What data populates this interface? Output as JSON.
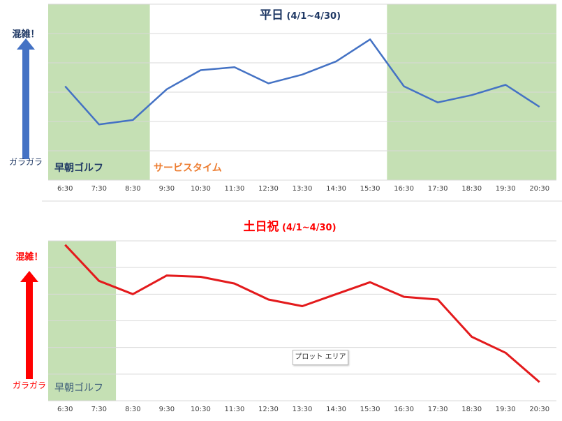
{
  "chart_data": [
    {
      "type": "line",
      "title_main": "平日",
      "title_range": "(4/1~4/30)",
      "title_color": "#1f3864",
      "line_color": "#4472c4",
      "arrow_color": "#4472c4",
      "label_top": "混雑！",
      "label_bottom": "ガラガラ",
      "categories": [
        "6:30",
        "7:30",
        "8:30",
        "9:30",
        "10:30",
        "11:30",
        "12:30",
        "13:30",
        "14:30",
        "15:30",
        "16:30",
        "17:30",
        "18:30",
        "19:30",
        "20:30"
      ],
      "values": [
        3.2,
        1.9,
        2.05,
        3.1,
        3.75,
        3.85,
        3.3,
        3.6,
        4.05,
        4.8,
        3.2,
        2.65,
        2.9,
        3.25,
        2.5
      ],
      "ylim": [
        0,
        6
      ],
      "grid": true,
      "shaded_regions": [
        {
          "from": "6:30",
          "to": "8:30",
          "color": "#c5e0b4",
          "label": "早朝ゴルフ",
          "label_color": "#1f3864"
        },
        {
          "from": "16:30",
          "to": "20:30",
          "color": "#c5e0b4",
          "label": "",
          "label_color": ""
        }
      ],
      "band_label": "サービスタイム",
      "band_label_color": "#ed7d31"
    },
    {
      "type": "line",
      "title_main": "土日祝",
      "title_range": "(4/1~4/30)",
      "title_color": "#ff0000",
      "line_color": "#e31a1c",
      "arrow_color": "#ff0000",
      "label_top": "混雑！",
      "label_bottom": "ガラガラ",
      "categories": [
        "6:30",
        "7:30",
        "8:30",
        "9:30",
        "10:30",
        "11:30",
        "12:30",
        "13:30",
        "14:30",
        "15:30",
        "16:30",
        "17:30",
        "18:30",
        "19:30",
        "20:30"
      ],
      "values": [
        5.85,
        4.5,
        4.0,
        4.7,
        4.65,
        4.4,
        3.8,
        3.55,
        4.0,
        4.45,
        3.9,
        3.8,
        2.4,
        1.8,
        0.7
      ],
      "ylim": [
        0,
        6
      ],
      "grid": true,
      "shaded_regions": [
        {
          "from": "6:30",
          "to": "7:30",
          "color": "#c5e0b4",
          "label": "早朝ゴルフ",
          "label_color": "#3a5a78"
        }
      ],
      "band_label": "",
      "band_label_color": ""
    }
  ],
  "tooltip": "プロット エリア"
}
